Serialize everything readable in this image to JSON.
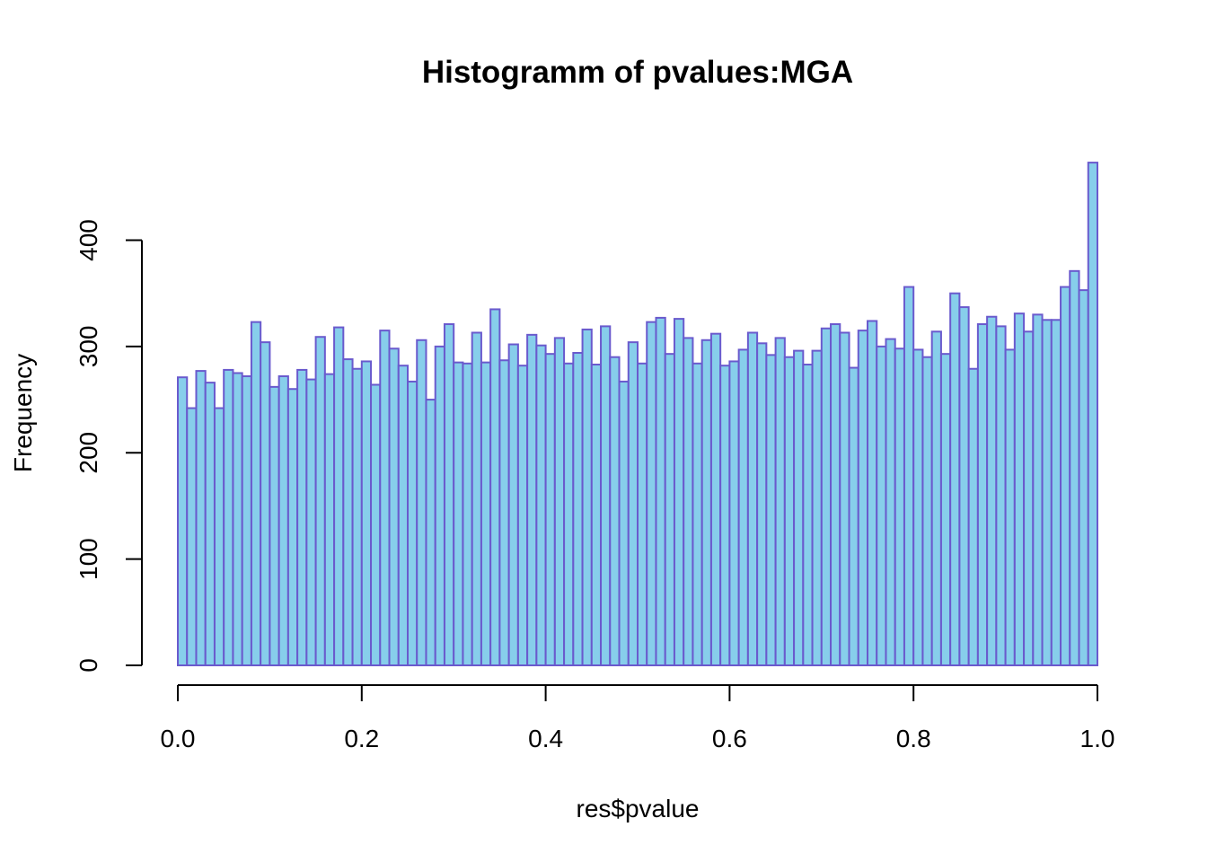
{
  "chart_data": {
    "type": "bar",
    "subtype": "histogram",
    "title": "Histogramm of pvalues:MGA",
    "xlabel": "res$pvalue",
    "ylabel": "Frequency",
    "xlim": [
      0,
      1
    ],
    "ylim": [
      0,
      400
    ],
    "bin_width": 0.01,
    "x_ticks": [
      "0.0",
      "0.2",
      "0.4",
      "0.6",
      "0.8",
      "1.0"
    ],
    "y_ticks": [
      "0",
      "100",
      "200",
      "300",
      "400"
    ],
    "bar_fill": "#87ceeb",
    "bar_stroke": "#6a5acd",
    "grid": false,
    "values": [
      271,
      242,
      277,
      266,
      242,
      278,
      275,
      272,
      323,
      304,
      262,
      272,
      260,
      278,
      269,
      309,
      274,
      318,
      288,
      279,
      286,
      264,
      315,
      298,
      282,
      267,
      306,
      250,
      300,
      321,
      285,
      284,
      313,
      285,
      335,
      287,
      302,
      282,
      311,
      301,
      293,
      308,
      284,
      294,
      316,
      283,
      319,
      290,
      267,
      304,
      284,
      323,
      327,
      293,
      326,
      308,
      284,
      306,
      312,
      282,
      286,
      297,
      313,
      303,
      292,
      308,
      290,
      296,
      283,
      296,
      317,
      321,
      313,
      280,
      315,
      324,
      300,
      307,
      298,
      356,
      297,
      290,
      314,
      293,
      350,
      337,
      279,
      321,
      328,
      319,
      297,
      331,
      314,
      330,
      325,
      325,
      356,
      371,
      353,
      473
    ]
  }
}
